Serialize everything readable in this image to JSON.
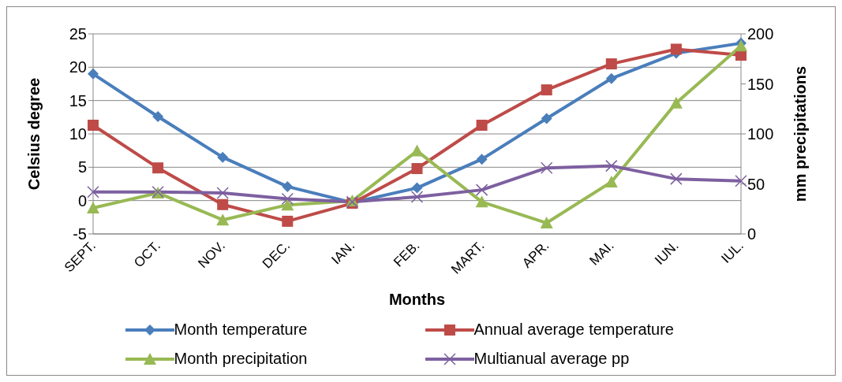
{
  "chart_data": {
    "type": "line",
    "xlabel": "Months",
    "ylabel": "Celsius degree",
    "y2label": "mm precipitations",
    "categories": [
      "SEPT.",
      "OCT.",
      "NOV.",
      "DEC.",
      "IAN.",
      "FEB.",
      "MART.",
      "APR.",
      "MAI.",
      "IUN.",
      "IUL."
    ],
    "series": [
      {
        "name": "Month temperature",
        "color": "#4a7ebb",
        "marker": "diamond",
        "values": [
          19.0,
          12.6,
          6.5,
          2.1,
          -0.3,
          1.9,
          6.2,
          12.3,
          18.3,
          22.1,
          23.6
        ]
      },
      {
        "name": "Annual average temperature",
        "color": "#be4b48",
        "marker": "square",
        "values": [
          11.3,
          4.9,
          -0.6,
          -3.1,
          -0.4,
          4.8,
          11.3,
          16.6,
          20.5,
          22.7,
          21.8
        ]
      },
      {
        "name": "Month precipitation",
        "color": "#98b954",
        "marker": "triangle",
        "axis": "y2",
        "values": [
          26,
          41,
          14,
          29,
          33,
          83,
          32,
          11,
          52,
          131,
          188
        ]
      },
      {
        "name": "Multianual average pp",
        "color": "#7d60a0",
        "marker": "cross",
        "axis": "y2",
        "values": [
          42,
          42,
          41,
          35,
          32,
          37,
          44,
          66,
          68,
          55,
          53
        ]
      }
    ],
    "ylim": [
      -5,
      25
    ],
    "yticks": [
      -5,
      0,
      5,
      10,
      15,
      20,
      25
    ],
    "y2lim": [
      0,
      200
    ],
    "y2ticks": [
      0,
      50,
      100,
      150,
      200
    ],
    "grid": "y",
    "legend": "bottom",
    "line_style": "solid"
  }
}
